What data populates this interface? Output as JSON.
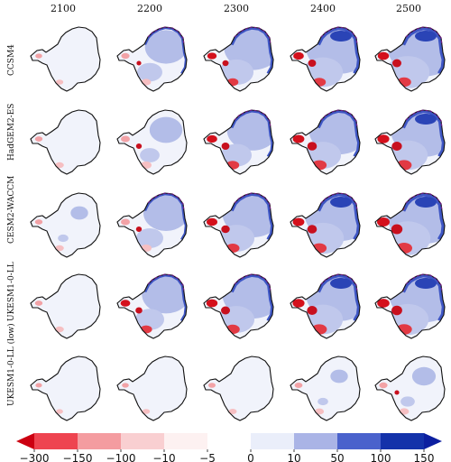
{
  "columns": [
    "2100",
    "2200",
    "2300",
    "2400",
    "2500"
  ],
  "rows": [
    "CCSM4",
    "HadGEM2-ES",
    "CESM2-WACCM",
    "UKESM1-0-LL",
    "UKESM1-0-LL (low)"
  ],
  "colorbar": {
    "ticks": [
      "−300",
      "−150",
      "−100",
      "−10",
      "−5",
      "0",
      "10",
      "50",
      "100",
      "150"
    ],
    "colors": [
      "#cc0011",
      "#ee4450",
      "#f49ca0",
      "#f9cfd1",
      "#fdf1f1",
      "#ffffff",
      "#eaeefa",
      "#aab4e6",
      "#4a62cc",
      "#1432aa",
      "#0c1fa0"
    ]
  },
  "panels": [
    [
      {
        "blue": 0.0,
        "red": 0.2
      },
      {
        "blue": 0.45,
        "red": 0.4
      },
      {
        "blue": 0.7,
        "red": 0.55
      },
      {
        "blue": 0.85,
        "red": 0.7
      },
      {
        "blue": 0.95,
        "red": 0.8
      }
    ],
    [
      {
        "blue": 0.0,
        "red": 0.3
      },
      {
        "blue": 0.3,
        "red": 0.5
      },
      {
        "blue": 0.6,
        "red": 0.7
      },
      {
        "blue": 0.75,
        "red": 0.85
      },
      {
        "blue": 0.85,
        "red": 0.9
      }
    ],
    [
      {
        "blue": 0.05,
        "red": 0.3
      },
      {
        "blue": 0.5,
        "red": 0.5
      },
      {
        "blue": 0.75,
        "red": 0.75
      },
      {
        "blue": 0.9,
        "red": 0.85
      },
      {
        "blue": 1.0,
        "red": 1.0
      }
    ],
    [
      {
        "blue": 0.0,
        "red": 0.3
      },
      {
        "blue": 0.55,
        "red": 0.6
      },
      {
        "blue": 0.75,
        "red": 0.8
      },
      {
        "blue": 0.85,
        "red": 0.9
      },
      {
        "blue": 0.9,
        "red": 0.95
      }
    ],
    [
      {
        "blue": 0.0,
        "red": 0.15
      },
      {
        "blue": 0.0,
        "red": 0.2
      },
      {
        "blue": 0.02,
        "red": 0.25
      },
      {
        "blue": 0.05,
        "red": 0.35
      },
      {
        "blue": 0.15,
        "red": 0.4
      }
    ]
  ]
}
